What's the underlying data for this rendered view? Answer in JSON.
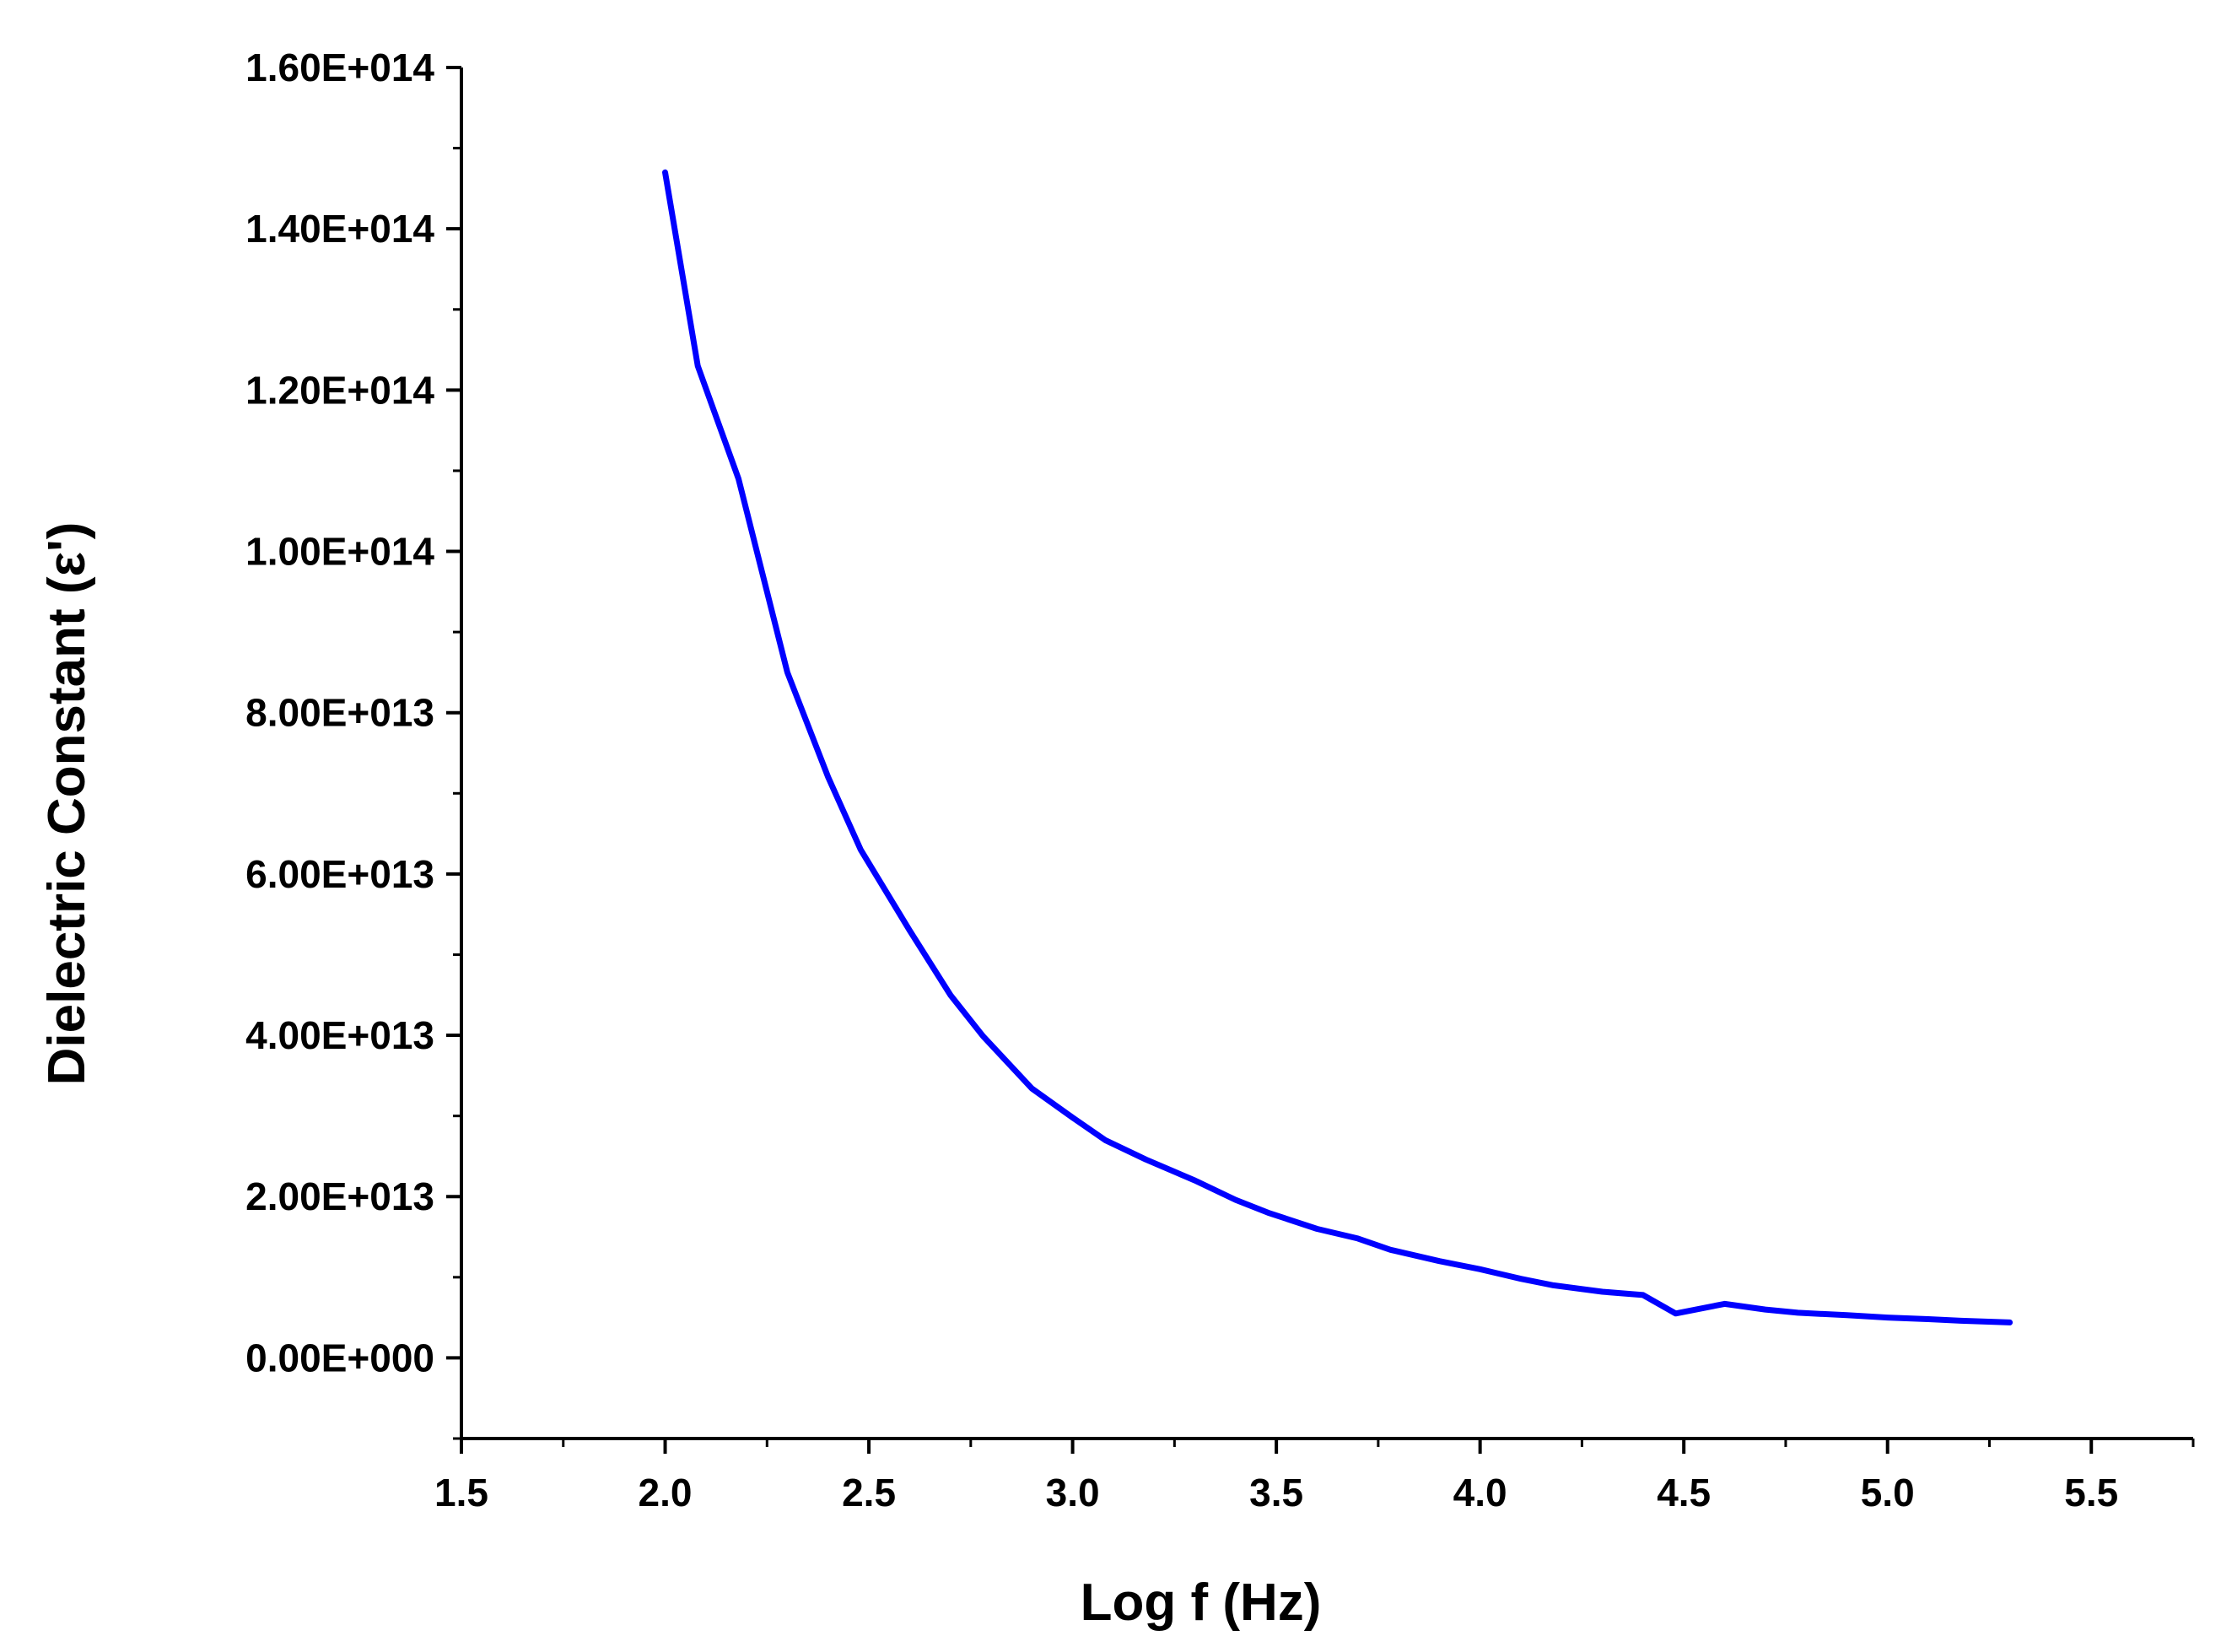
{
  "chart_data": {
    "type": "line",
    "title": "",
    "xlabel": "Log f (Hz)",
    "ylabel": "Dielectric Constant (ε')",
    "xlim": [
      1.5,
      5.75
    ],
    "ylim": [
      -10000000000000.0,
      160000000000000.0
    ],
    "x_ticks": [
      1.5,
      2.0,
      2.5,
      3.0,
      3.5,
      4.0,
      4.5,
      5.0,
      5.5
    ],
    "x_tick_labels": [
      "1.5",
      "2.0",
      "2.5",
      "3.0",
      "3.5",
      "4.0",
      "4.5",
      "5.0",
      "5.5"
    ],
    "y_ticks": [
      0,
      20000000000000.0,
      40000000000000.0,
      60000000000000.0,
      80000000000000.0,
      100000000000000.0,
      120000000000000.0,
      140000000000000.0,
      160000000000000.0
    ],
    "y_tick_labels": [
      "0.00E+000",
      "2.00E+013",
      "4.00E+013",
      "6.00E+013",
      "8.00E+013",
      "1.00E+014",
      "1.20E+014",
      "1.40E+014",
      "1.60E+014"
    ],
    "grid": false,
    "legend": "none",
    "series": [
      {
        "color": "#0000ff",
        "x": [
          2.0,
          2.08,
          2.18,
          2.3,
          2.4,
          2.48,
          2.6,
          2.7,
          2.78,
          2.9,
          3.0,
          3.08,
          3.18,
          3.3,
          3.4,
          3.48,
          3.6,
          3.7,
          3.78,
          3.9,
          4.0,
          4.1,
          4.18,
          4.3,
          4.4,
          4.48,
          4.6,
          4.7,
          4.78,
          4.9,
          5.0,
          5.1,
          5.18,
          5.3
        ],
        "y": [
          147000000000000.0,
          123000000000000.0,
          109000000000000.0,
          85000000000000.0,
          72000000000000.0,
          63000000000000.0,
          53000000000000.0,
          45000000000000.0,
          39900000000000.0,
          33400000000000.0,
          29800000000000.0,
          27000000000000.0,
          24600000000000.0,
          22000000000000.0,
          19600000000000.0,
          18000000000000.0,
          16000000000000.0,
          14800000000000.0,
          13400000000000.0,
          12000000000000.0,
          11000000000000.0,
          9800000000000.0,
          9000000000000.0,
          8200000000000.0,
          7800000000000.0,
          5500000000000.0,
          6700000000000.0,
          6000000000000.0,
          5600000000000.0,
          5300000000000.0,
          5000000000000.0,
          4800000000000.0,
          4600000000000.0,
          4400000000000.0
        ]
      }
    ]
  }
}
